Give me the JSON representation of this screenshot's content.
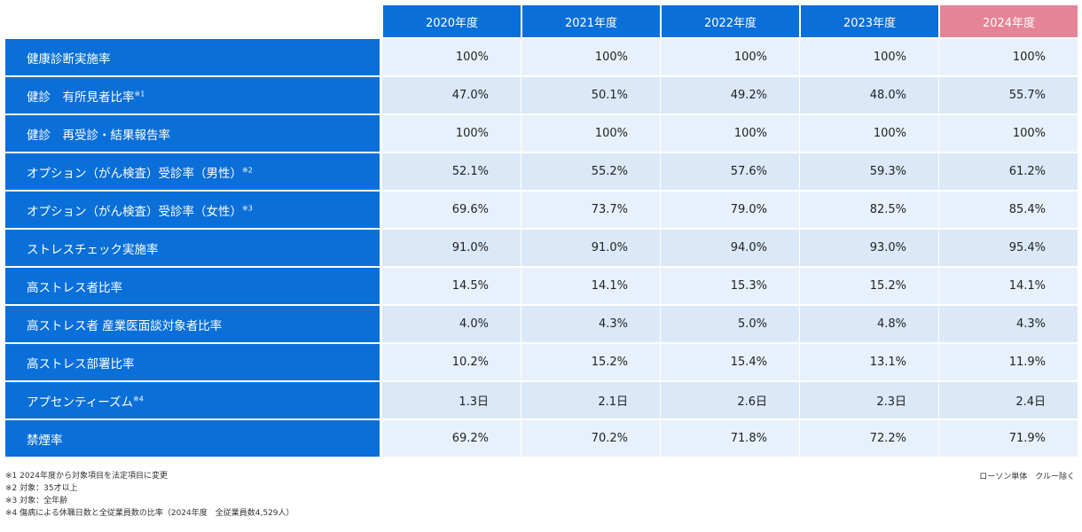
{
  "years": [
    "2020年度",
    "2021年度",
    "2022年度",
    "2023年度",
    "2024年度"
  ],
  "rows": [
    {
      "label": "健康診断実施率",
      "note": "",
      "values": [
        "100%",
        "100%",
        "100%",
        "100%",
        "100%"
      ]
    },
    {
      "label": "健診　有所見者比率",
      "note": "※1",
      "values": [
        "47.0%",
        "50.1%",
        "49.2%",
        "48.0%",
        "55.7%"
      ]
    },
    {
      "label": "健診　再受診・結果報告率",
      "note": "",
      "values": [
        "100%",
        "100%",
        "100%",
        "100%",
        "100%"
      ]
    },
    {
      "label": "オプション（がん検査）受診率（男性）",
      "note": "※2",
      "values": [
        "52.1%",
        "55.2%",
        "57.6%",
        "59.3%",
        "61.2%"
      ]
    },
    {
      "label": "オプション（がん検査）受診率（女性）",
      "note": "※3",
      "values": [
        "69.6%",
        "73.7%",
        "79.0%",
        "82.5%",
        "85.4%"
      ]
    },
    {
      "label": "ストレスチェック実施率",
      "note": "",
      "values": [
        "91.0%",
        "91.0%",
        "94.0%",
        "93.0%",
        "95.4%"
      ]
    },
    {
      "label": "高ストレス者比率",
      "note": "",
      "values": [
        "14.5%",
        "14.1%",
        "15.3%",
        "15.2%",
        "14.1%"
      ]
    },
    {
      "label": "高ストレス者 産業医面談対象者比率",
      "note": "",
      "values": [
        "4.0%",
        "4.3%",
        "5.0%",
        "4.8%",
        "4.3%"
      ]
    },
    {
      "label": "高ストレス部署比率",
      "note": "",
      "values": [
        "10.2%",
        "15.2%",
        "15.4%",
        "13.1%",
        "11.9%"
      ]
    },
    {
      "label": "アプセンティーズム",
      "note": "※4",
      "values": [
        "1.3日",
        "2.1日",
        "2.6日",
        "2.3日",
        "2.4日"
      ]
    },
    {
      "label": "禁煙率",
      "note": "",
      "values": [
        "69.2%",
        "70.2%",
        "71.8%",
        "72.2%",
        "71.9%"
      ]
    }
  ],
  "notes": [
    "※1 2024年度から対象項目を法定項目に変更",
    "※2 対象：35才以上",
    "※3 対象：全年齢",
    "※4 傷病による休職日数と全従業員数の比率（2024年度　全従業員数4,529人）"
  ],
  "scope": "ローソン単体　クルー除く",
  "colors": {
    "header_blue": "#0a6fd8",
    "highlight": "#e58497"
  }
}
